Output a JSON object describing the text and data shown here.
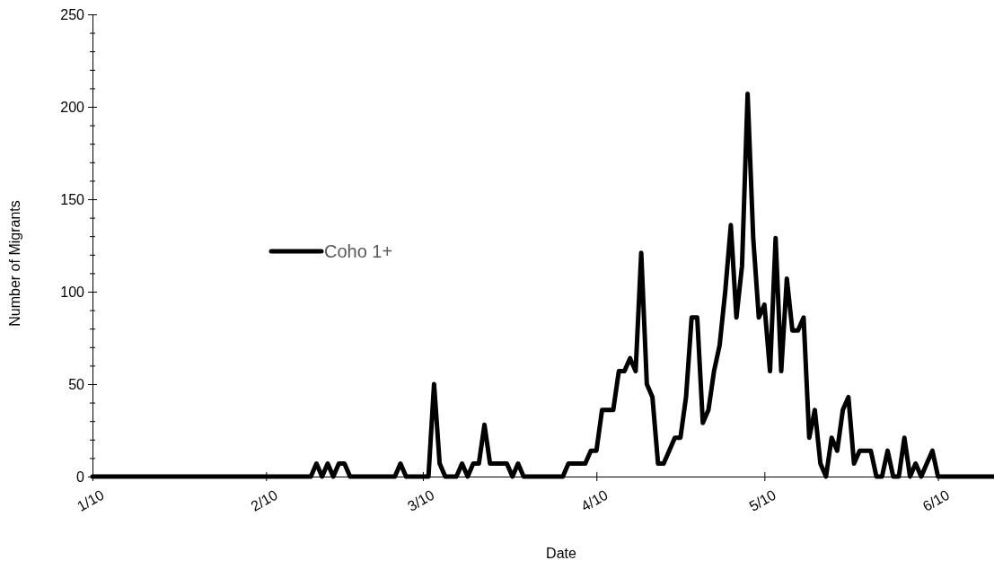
{
  "chart_data": {
    "type": "line",
    "xlabel": "Date",
    "ylabel": "Number of Migrants",
    "x": [
      "--01-10",
      "--02-18",
      "--02-19",
      "--02-20",
      "--02-21",
      "--02-22",
      "--02-23",
      "--02-24",
      "--02-25",
      "--03-05",
      "--03-06",
      "--03-07",
      "--03-11",
      "--03-12",
      "--03-13",
      "--03-14",
      "--03-16",
      "--03-17",
      "--03-18",
      "--03-19",
      "--03-20",
      "--03-21",
      "--03-22",
      "--03-25",
      "--03-26",
      "--03-27",
      "--03-28",
      "--04-04",
      "--04-05",
      "--04-08",
      "--04-09",
      "--04-10",
      "--04-11",
      "--04-13",
      "--04-14",
      "--04-15",
      "--04-16",
      "--04-17",
      "--04-18",
      "--04-19",
      "--04-20",
      "--04-21",
      "--04-22",
      "--04-23",
      "--04-24",
      "--04-25",
      "--04-26",
      "--04-27",
      "--04-28",
      "--04-29",
      "--04-30",
      "--05-01",
      "--05-02",
      "--05-03",
      "--05-04",
      "--05-05",
      "--05-06",
      "--05-07",
      "--05-08",
      "--05-09",
      "--05-10",
      "--05-11",
      "--05-12",
      "--05-13",
      "--05-14",
      "--05-15",
      "--05-16",
      "--05-17",
      "--05-18",
      "--05-19",
      "--05-20",
      "--05-21",
      "--05-22",
      "--05-23",
      "--05-24",
      "--05-25",
      "--05-26",
      "--05-27",
      "--05-29",
      "--05-30",
      "--05-31",
      "--06-01",
      "--06-02",
      "--06-03",
      "--06-04",
      "--06-05",
      "--06-06",
      "--06-07",
      "--06-08",
      "--06-09",
      "--06-10",
      "--06-20"
    ],
    "series": [
      {
        "name": "Coho 1+",
        "color": "#000000",
        "values": [
          0,
          0,
          7,
          0,
          7,
          0,
          7,
          7,
          0,
          0,
          7,
          0,
          0,
          50,
          7,
          0,
          0,
          7,
          0,
          7,
          7,
          28,
          7,
          7,
          0,
          7,
          0,
          0,
          7,
          7,
          14,
          14,
          36,
          36,
          57,
          57,
          64,
          57,
          121,
          50,
          43,
          7,
          7,
          14,
          21,
          21,
          43,
          86,
          86,
          29,
          36,
          57,
          71,
          100,
          136,
          86,
          114,
          207,
          129,
          86,
          93,
          57,
          129,
          57,
          107,
          79,
          79,
          86,
          21,
          36,
          7,
          0,
          21,
          14,
          36,
          43,
          7,
          14,
          14,
          0,
          0,
          14,
          0,
          0,
          21,
          0,
          7,
          0,
          7,
          14,
          0,
          0
        ]
      }
    ],
    "xlim": [
      "--01-10",
      "--06-20"
    ],
    "xticks": [
      {
        "value": "--01-10",
        "label": "1/10"
      },
      {
        "value": "--02-10",
        "label": "2/10"
      },
      {
        "value": "--03-10",
        "label": "3/10"
      },
      {
        "value": "--04-10",
        "label": "4/10"
      },
      {
        "value": "--05-10",
        "label": "5/10"
      },
      {
        "value": "--06-10",
        "label": "6/10"
      }
    ],
    "ylim": [
      0,
      250
    ],
    "yticks": [
      0,
      {
        "value": 10,
        "label": null
      },
      {
        "value": 20,
        "label": null
      },
      {
        "value": 30,
        "label": null
      },
      {
        "value": 40,
        "label": null
      },
      50,
      {
        "value": 60,
        "label": null
      },
      {
        "value": 70,
        "label": null
      },
      {
        "value": 80,
        "label": null
      },
      {
        "value": 90,
        "label": null
      },
      100,
      {
        "value": 110,
        "label": null
      },
      {
        "value": 120,
        "label": null
      },
      {
        "value": 130,
        "label": null
      },
      {
        "value": 140,
        "label": null
      },
      150,
      {
        "value": 160,
        "label": null
      },
      {
        "value": 170,
        "label": null
      },
      {
        "value": 180,
        "label": null
      },
      {
        "value": 190,
        "label": null
      },
      200,
      {
        "value": 210,
        "label": null
      },
      {
        "value": 220,
        "label": null
      },
      {
        "value": 230,
        "label": null
      },
      {
        "value": 240,
        "label": null
      },
      250
    ],
    "legend": "left",
    "grid": false,
    "marker": "none",
    "line_style": "solid"
  }
}
